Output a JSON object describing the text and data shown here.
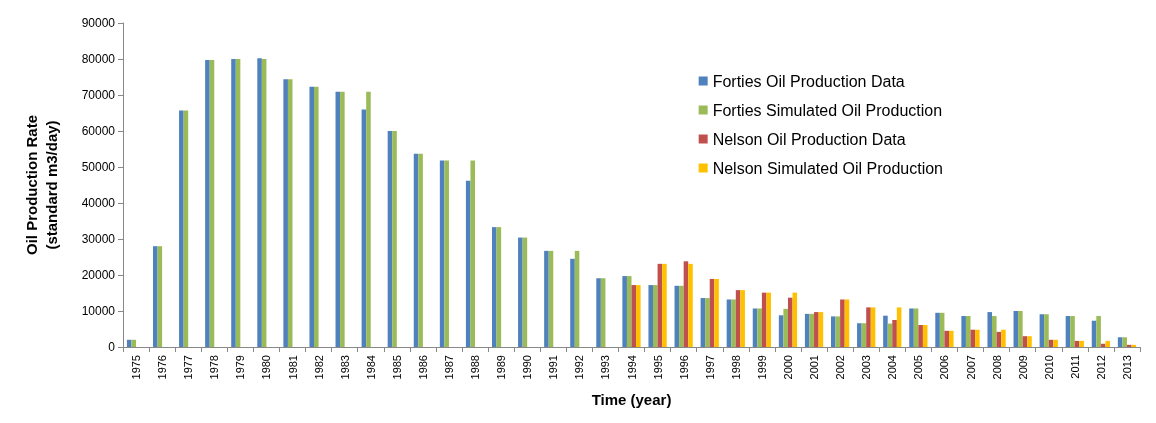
{
  "chart_data": {
    "type": "bar",
    "xlabel": "Time (year)",
    "ylabel": "Oil Production Rate\n(standard m3/day)",
    "categories": [
      "1975",
      "1976",
      "1977",
      "1978",
      "1979",
      "1980",
      "1981",
      "1982",
      "1983",
      "1984",
      "1985",
      "1986",
      "1987",
      "1988",
      "1989",
      "1990",
      "1991",
      "1992",
      "1993",
      "1994",
      "1995",
      "1996",
      "1997",
      "1998",
      "1999",
      "2000",
      "2001",
      "2002",
      "2003",
      "2004",
      "2005",
      "2006",
      "2007",
      "2008",
      "2009",
      "2010",
      "2011",
      "2012",
      "2013"
    ],
    "series": [
      {
        "name": "Forties Oil Production Data",
        "color": "#4f81bd",
        "values": [
          2000,
          28000,
          65700,
          79700,
          80000,
          80200,
          74400,
          72300,
          70900,
          66000,
          60000,
          53700,
          51800,
          46200,
          33300,
          30400,
          26700,
          24500,
          19100,
          19700,
          17200,
          17000,
          13600,
          13200,
          10700,
          8800,
          9200,
          8500,
          6600,
          8700,
          10700,
          9500,
          8600,
          9700,
          10000,
          9100,
          8600,
          7300,
          2700
        ]
      },
      {
        "name": "Forties Simulated Oil Production",
        "color": "#9bbb59",
        "values": [
          2000,
          28000,
          65700,
          79700,
          80000,
          80000,
          74400,
          72300,
          70900,
          70900,
          60000,
          53700,
          51800,
          51800,
          33300,
          30400,
          26700,
          26700,
          19100,
          19700,
          17200,
          17000,
          13600,
          13200,
          10700,
          10600,
          9200,
          8500,
          6600,
          6500,
          10700,
          9500,
          8600,
          8600,
          10000,
          9100,
          8600,
          8600,
          2700
        ]
      },
      {
        "name": "Nelson Oil Production Data",
        "color": "#c0504d",
        "values": [
          null,
          null,
          null,
          null,
          null,
          null,
          null,
          null,
          null,
          null,
          null,
          null,
          null,
          null,
          null,
          null,
          null,
          null,
          null,
          17200,
          23100,
          23800,
          18900,
          15800,
          15100,
          13700,
          9700,
          13200,
          11000,
          7500,
          6100,
          4500,
          4800,
          4200,
          3000,
          2000,
          1700,
          900,
          600
        ]
      },
      {
        "name": "Nelson Simulated Oil Production",
        "color": "#ffc000",
        "values": [
          null,
          null,
          null,
          null,
          null,
          null,
          null,
          null,
          null,
          null,
          null,
          null,
          null,
          null,
          null,
          null,
          null,
          null,
          null,
          17200,
          23100,
          23100,
          18900,
          15800,
          15100,
          15100,
          9700,
          13200,
          11000,
          11000,
          6100,
          4500,
          4800,
          4800,
          3000,
          2000,
          1700,
          1700,
          600
        ]
      }
    ],
    "ylim": [
      0,
      90000
    ],
    "yticks": [
      0,
      10000,
      20000,
      30000,
      40000,
      50000,
      60000,
      70000,
      80000,
      90000
    ],
    "grid": false,
    "legend": "top right"
  }
}
